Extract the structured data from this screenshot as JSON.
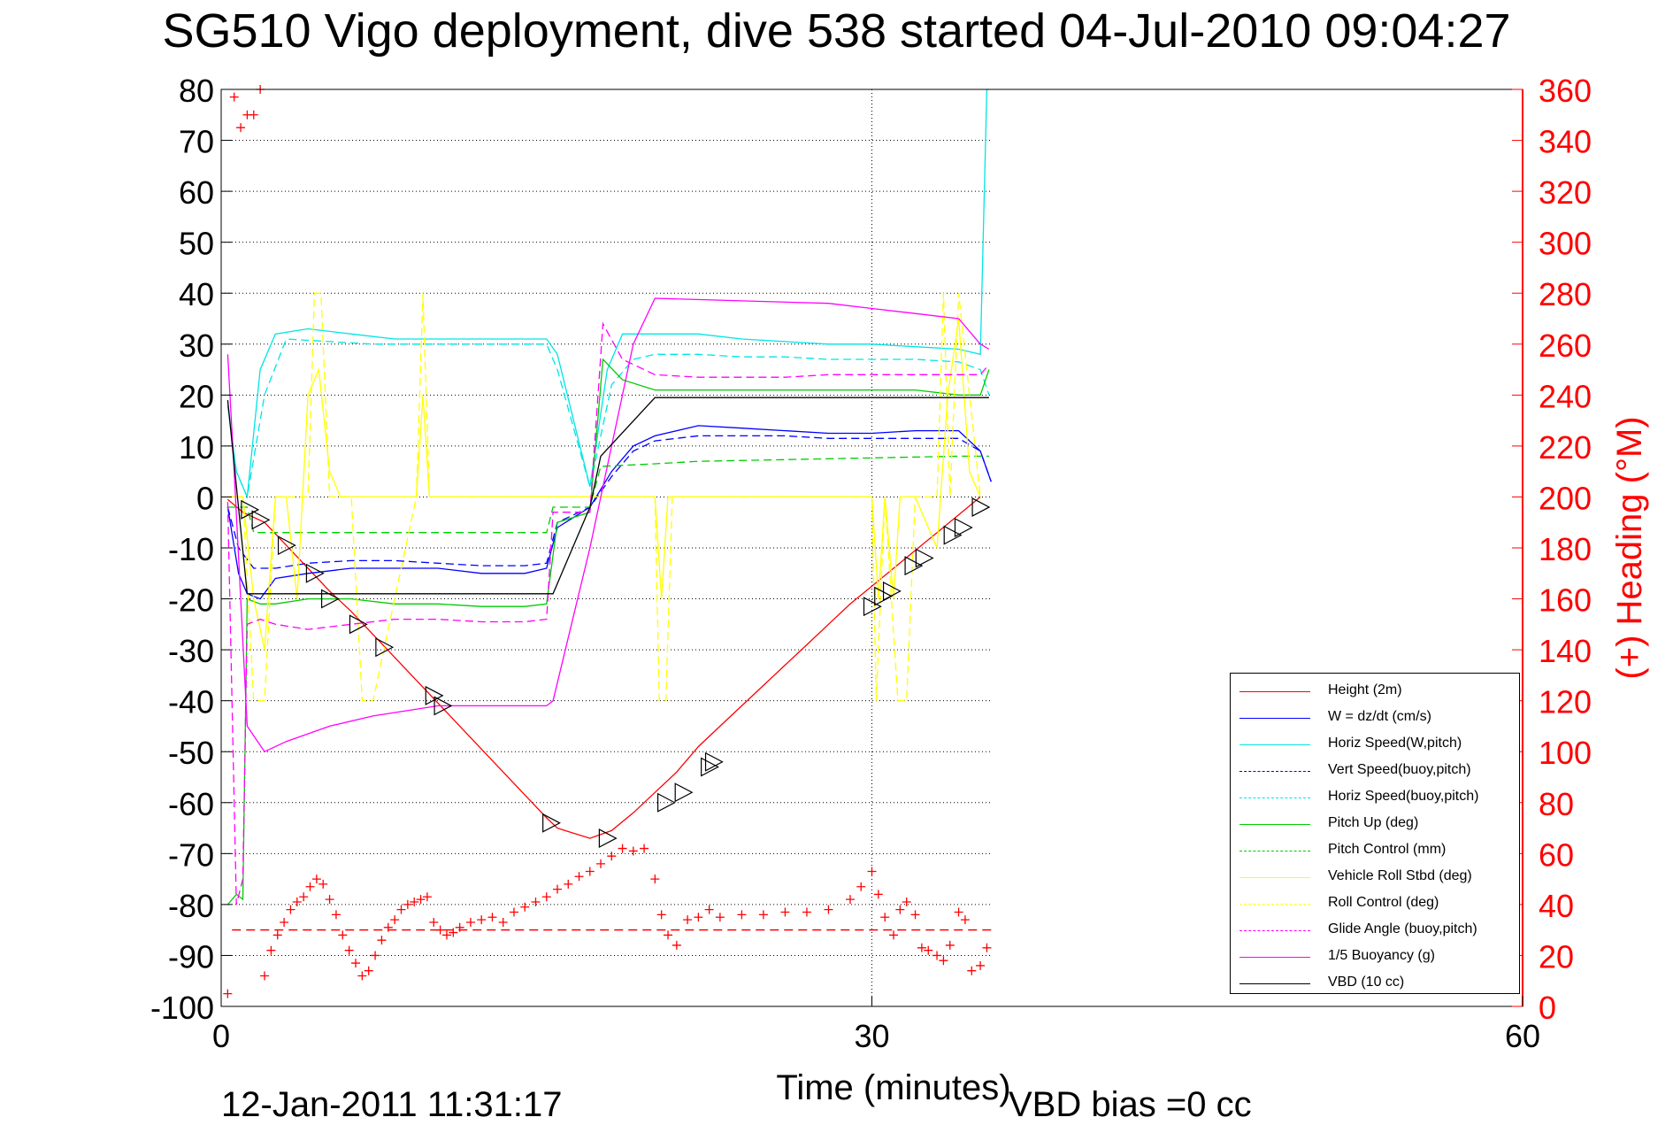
{
  "title": "SG510 Vigo deployment, dive 538 started 04-Jul-2010 09:04:27",
  "footer": {
    "date": "12-Jan-2011 11:31:17",
    "vbd_bias": "VBD bias =0 cc"
  },
  "chart_data": {
    "type": "line",
    "xlabel": "Time (minutes)",
    "ylabel": "",
    "y2label": "(+) Heading (°M)",
    "xlim": [
      0,
      60
    ],
    "ylim": [
      -100,
      80
    ],
    "y2lim": [
      0,
      360
    ],
    "xticks": [
      0,
      30,
      60
    ],
    "yticks": [
      -100,
      -90,
      -80,
      -70,
      -60,
      -50,
      -40,
      -30,
      -20,
      -10,
      0,
      10,
      20,
      30,
      40,
      50,
      60,
      70,
      80
    ],
    "y2ticks": [
      0,
      20,
      40,
      60,
      80,
      100,
      120,
      140,
      160,
      180,
      200,
      220,
      240,
      260,
      280,
      300,
      320,
      340,
      360
    ],
    "grid": "x at 30 only, dotted y gridlines over data span",
    "legend_position": "bottom-right",
    "colors": {
      "height": "#ff0000",
      "w": "#0000ff",
      "horiz_w": "#00e5e5",
      "vert_buoy": "#0000ff",
      "horiz_buoy": "#00e5e5",
      "pitch_up": "#00cc00",
      "pitch_ctrl": "#00cc00",
      "roll": "#ffff00",
      "roll_ctrl": "#ffff00",
      "glide": "#ff00ff",
      "buoy": "#ff00ff",
      "vbd": "#000000",
      "heading": "#ff0000"
    },
    "series": [
      {
        "name": "Height (2m)",
        "style": "solid",
        "color": "#ff0000",
        "x": [
          0.3,
          1.0,
          2.0,
          3.0,
          4.0,
          5.0,
          6.0,
          7.0,
          8.0,
          9.0,
          10.0,
          11.0,
          12.0,
          13.0,
          14.0,
          15.0,
          15.5,
          17.0,
          18.0,
          19.0,
          20.0,
          21.0,
          22.0,
          23.0,
          24.0,
          25.0,
          26.0,
          27.0,
          28.0,
          29.0,
          30.0,
          31.0,
          32.0,
          33.0,
          34.0,
          35.0
        ],
        "y": [
          -0.5,
          -3,
          -5,
          -9.5,
          -14,
          -18.5,
          -22.5,
          -27,
          -31.5,
          -36,
          -40.5,
          -45,
          -49.5,
          -54,
          -58.5,
          -63,
          -65,
          -67,
          -65.5,
          -62,
          -58,
          -54,
          -49,
          -45,
          -41,
          -37,
          -33,
          -29,
          -25,
          -21,
          -17.5,
          -14,
          -10.5,
          -7,
          -3.5,
          0
        ]
      },
      {
        "name": "W = dz/dt (cm/s)",
        "style": "solid",
        "color": "#0000ff",
        "x": [
          0.3,
          0.8,
          1.2,
          1.8,
          2.5,
          4,
          6,
          8,
          10,
          12,
          14,
          15,
          15.5,
          17,
          18,
          19,
          20,
          22,
          24,
          26,
          28,
          30,
          32,
          34,
          35,
          35.5
        ],
        "y": [
          -2,
          -15,
          -19,
          -20,
          -16,
          -15,
          -14,
          -14,
          -14,
          -15,
          -15,
          -14,
          -6,
          -2,
          5,
          10,
          12,
          14,
          13.5,
          13,
          12.5,
          12.5,
          13,
          13,
          9,
          3
        ]
      },
      {
        "name": "Horiz Speed(W,pitch)",
        "style": "solid",
        "color": "#00e5e5",
        "x": [
          0.3,
          0.7,
          1.2,
          1.8,
          2.5,
          4,
          6,
          8,
          10,
          12,
          14,
          15,
          15.5,
          17,
          17.8,
          18.5,
          20,
          22,
          24,
          26,
          28,
          30,
          32,
          34,
          35,
          35.3,
          35.4
        ],
        "y": [
          18,
          5,
          0,
          25,
          32,
          33,
          32,
          31,
          31,
          31,
          31,
          31,
          28,
          2,
          25,
          32,
          32,
          32,
          31,
          30.5,
          30,
          30,
          29.5,
          29,
          28,
          80,
          80
        ]
      },
      {
        "name": "Vert Speed(buoy,pitch)",
        "style": "dashed",
        "color": "#0000ff",
        "x": [
          0.3,
          0.8,
          1.5,
          2.5,
          4,
          6,
          8,
          10,
          12,
          14,
          15,
          15.5,
          17,
          18,
          19,
          20,
          22,
          24,
          26,
          28,
          30,
          32,
          34,
          35,
          35.5
        ],
        "y": [
          -2,
          -10,
          -14,
          -14,
          -13,
          -12.5,
          -12.5,
          -13,
          -13.5,
          -13.5,
          -13,
          -5,
          -2,
          4,
          9,
          11,
          12,
          12,
          12,
          11.5,
          11.5,
          11.5,
          11.5,
          9,
          3
        ]
      },
      {
        "name": "Horiz Speed(buoy,pitch)",
        "style": "dashed",
        "color": "#00e5e5",
        "x": [
          0.3,
          0.7,
          1.2,
          2,
          3,
          5,
          7,
          10,
          12,
          14,
          15,
          15.5,
          17,
          18,
          19,
          20,
          22,
          24,
          26,
          28,
          30,
          32,
          34,
          35,
          35.4
        ],
        "y": [
          18,
          5,
          0,
          20,
          31,
          30.5,
          30,
          30,
          30,
          30,
          30,
          25,
          2,
          22,
          27,
          28,
          28,
          27.5,
          27.5,
          27,
          27,
          27,
          26.5,
          25,
          20
        ]
      },
      {
        "name": "Pitch Up (deg)",
        "style": "solid",
        "color": "#00cc00",
        "x": [
          0.3,
          0.7,
          1.0,
          1.2,
          1.8,
          2.5,
          4,
          6,
          8,
          10,
          12,
          14,
          15,
          15.5,
          17,
          17.6,
          18.5,
          20,
          22,
          24,
          26,
          28,
          30,
          32,
          34,
          35,
          35.4
        ],
        "y": [
          -80,
          -78,
          -79,
          -20,
          -21,
          -21,
          -20,
          -20,
          -21,
          -21,
          -21.5,
          -21.5,
          -21,
          -5,
          -3,
          27,
          23,
          21,
          21,
          21,
          21,
          21,
          21,
          21,
          20,
          20,
          25
        ]
      },
      {
        "name": "Pitch Control (mm)",
        "style": "dashed",
        "color": "#00cc00",
        "x": [
          0.3,
          1.2,
          1.5,
          15,
          15.3,
          17,
          17.5,
          20,
          22,
          34,
          35,
          35.4
        ],
        "y": [
          -2,
          -2,
          -7,
          -7,
          -2,
          -2,
          6,
          6.5,
          7,
          8,
          8,
          8
        ]
      },
      {
        "name": "Vehicle Roll Stbd (deg)",
        "style": "solid",
        "color": "#ffff00",
        "x": [
          0.3,
          1.0,
          1.5,
          2.0,
          2.5,
          3.0,
          3.5,
          4.0,
          4.5,
          5.0,
          5.5,
          6.0,
          7.0,
          8.0,
          9.0,
          9.3,
          9.6,
          10.0,
          14,
          15,
          17.5,
          20,
          20.3,
          20.6,
          21,
          23,
          30,
          30.3,
          30.6,
          31,
          31.3,
          31.6,
          32,
          33,
          33.5,
          34,
          34.5,
          35
        ],
        "y": [
          0,
          0,
          -20,
          -30,
          0,
          0,
          -20,
          20,
          25,
          5,
          0,
          0,
          0,
          0,
          0,
          20,
          0,
          0,
          0,
          0,
          0,
          0,
          -20,
          0,
          0,
          0,
          0,
          -20,
          0,
          -20,
          0,
          0,
          0,
          -10,
          20,
          35,
          5,
          0
        ]
      },
      {
        "name": "Roll Control (deg)",
        "style": "dashed",
        "color": "#ffff00",
        "x": [
          0.3,
          1.0,
          1.5,
          2.0,
          2.5,
          3.0,
          4.0,
          4.3,
          4.6,
          5.0,
          6.0,
          6.5,
          7.0,
          9.0,
          9.3,
          9.6,
          14,
          17.5,
          20,
          20.2,
          20.5,
          20.8,
          30,
          30.2,
          30.6,
          31.2,
          31.6,
          32,
          33,
          33.3,
          33.6,
          34,
          35
        ],
        "y": [
          0,
          0,
          -40,
          -40,
          0,
          0,
          0,
          40,
          40,
          0,
          0,
          -40,
          -40,
          0,
          40,
          0,
          0,
          0,
          0,
          -40,
          -40,
          0,
          0,
          -40,
          0,
          -40,
          -40,
          0,
          0,
          40,
          0,
          40,
          0
        ]
      },
      {
        "name": "Glide Angle (buoy,pitch)",
        "style": "dashed",
        "color": "#ff00ff",
        "x": [
          0.3,
          0.7,
          1.0,
          1.2,
          1.8,
          2.5,
          4,
          6,
          8,
          10,
          12,
          14,
          15,
          15.3,
          17,
          17.6,
          18.5,
          20,
          22,
          24,
          26,
          28,
          30,
          32,
          34,
          35,
          35.4
        ],
        "y": [
          -1,
          -80,
          -75,
          -25,
          -24,
          -25,
          -26,
          -25,
          -24,
          -24,
          -24.5,
          -24.5,
          -24,
          -3,
          -3,
          34,
          27,
          24,
          23.5,
          23.5,
          23.5,
          24,
          24,
          24,
          24,
          24,
          26
        ]
      },
      {
        "name": "1/5 Buoyancy (g)",
        "style": "solid",
        "color": "#ff00ff",
        "x": [
          0.3,
          0.6,
          1.2,
          2.0,
          3,
          5,
          7,
          10,
          12,
          14,
          15,
          15.3,
          17,
          18,
          19,
          20,
          24,
          28,
          30,
          32,
          34,
          35,
          35.4
        ],
        "y": [
          28,
          5,
          -45,
          -50,
          -48,
          -45,
          -43,
          -41,
          -41,
          -41,
          -41,
          -40,
          -10,
          10,
          30,
          39,
          38.5,
          38,
          37,
          36,
          35,
          30,
          29
        ]
      },
      {
        "name": "VBD (10 cc)",
        "style": "solid",
        "color": "#000000",
        "x": [
          0.3,
          1.2,
          1.5,
          15,
          15.3,
          17,
          17.5,
          20,
          35.4
        ],
        "y": [
          19,
          -19,
          -19,
          -19,
          -19,
          -2,
          8,
          19.5,
          19.5
        ]
      }
    ],
    "markers": {
      "name": "triangle markers",
      "x": [
        1.3,
        1.8,
        3.0,
        4.3,
        5.0,
        6.3,
        7.5,
        9.8,
        10.2,
        15.2,
        17.8,
        20.5,
        21.3,
        22.5,
        22.7,
        30.0,
        30.5,
        30.9,
        31.9,
        32.4,
        33.7,
        34.2,
        35.0
      ],
      "y": [
        -2.5,
        -4.5,
        -9.5,
        -15,
        -20,
        -25,
        -29.5,
        -39,
        -41,
        -64,
        -67,
        -60,
        -58,
        -53,
        -52,
        -21.5,
        -19.5,
        -18.5,
        -13.5,
        -12,
        -7.5,
        -6,
        -2
      ]
    },
    "heading": {
      "name": "(+) Heading",
      "style": "plus",
      "color": "#ff0000",
      "reference": 30,
      "x": [
        0.3,
        0.6,
        0.9,
        1.2,
        1.5,
        1.8,
        2.0,
        2.3,
        2.6,
        2.9,
        3.2,
        3.5,
        3.8,
        4.1,
        4.4,
        4.7,
        5.0,
        5.3,
        5.6,
        5.9,
        6.2,
        6.5,
        6.8,
        7.1,
        7.4,
        7.7,
        8.0,
        8.3,
        8.6,
        8.9,
        9.2,
        9.5,
        9.8,
        10.1,
        10.4,
        10.7,
        11.0,
        11.5,
        12,
        12.5,
        13,
        13.5,
        14,
        14.5,
        15,
        15.5,
        16,
        16.5,
        17,
        17.5,
        18,
        18.5,
        19,
        19.5,
        20,
        20.3,
        20.6,
        21,
        21.5,
        22,
        22.5,
        23,
        24,
        25,
        26,
        27,
        28,
        29,
        29.5,
        30,
        30.3,
        30.6,
        31,
        31.3,
        31.6,
        32,
        32.3,
        32.6,
        33,
        33.3,
        33.6,
        34,
        34.3,
        34.6,
        35,
        35.3
      ],
      "y": [
        5,
        357,
        345,
        350,
        350,
        360,
        12,
        22,
        28,
        33,
        38,
        41,
        43,
        47,
        50,
        48,
        42,
        36,
        28,
        22,
        17,
        12,
        14,
        20,
        26,
        31,
        34,
        38,
        40,
        41,
        42,
        43,
        33,
        30,
        28,
        29,
        31,
        33,
        34,
        35,
        33,
        37,
        39,
        41,
        43,
        46,
        48,
        51,
        53,
        56,
        59,
        62,
        61,
        62,
        50,
        36,
        28,
        24,
        34,
        35,
        38,
        35,
        36,
        36,
        37,
        37,
        38,
        42,
        47,
        53,
        44,
        35,
        28,
        38,
        41,
        36,
        23,
        22,
        20,
        18,
        24,
        37,
        34,
        14,
        16,
        23
      ]
    }
  }
}
